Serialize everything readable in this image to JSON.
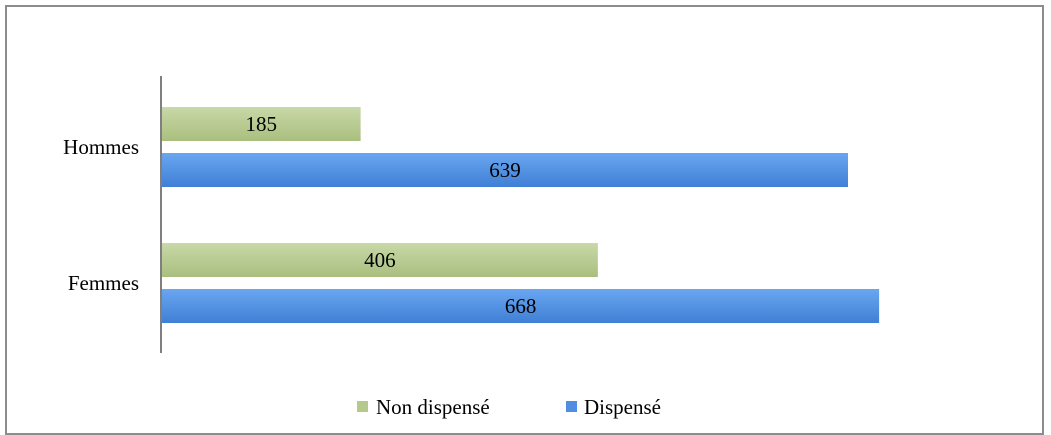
{
  "chart_data": {
    "type": "bar",
    "orientation": "horizontal",
    "categories": [
      "Hommes",
      "Femmes"
    ],
    "series": [
      {
        "name": "Non dispensé",
        "values": [
          185,
          406
        ],
        "color": "#b5c98d"
      },
      {
        "name": "Dispensé",
        "values": [
          639,
          668
        ],
        "color": "#4f8ee0"
      }
    ],
    "title": "",
    "xlabel": "",
    "ylabel": "",
    "xlim": [
      0,
      700
    ],
    "grid": false,
    "legend_position": "bottom",
    "data_labels": true
  }
}
